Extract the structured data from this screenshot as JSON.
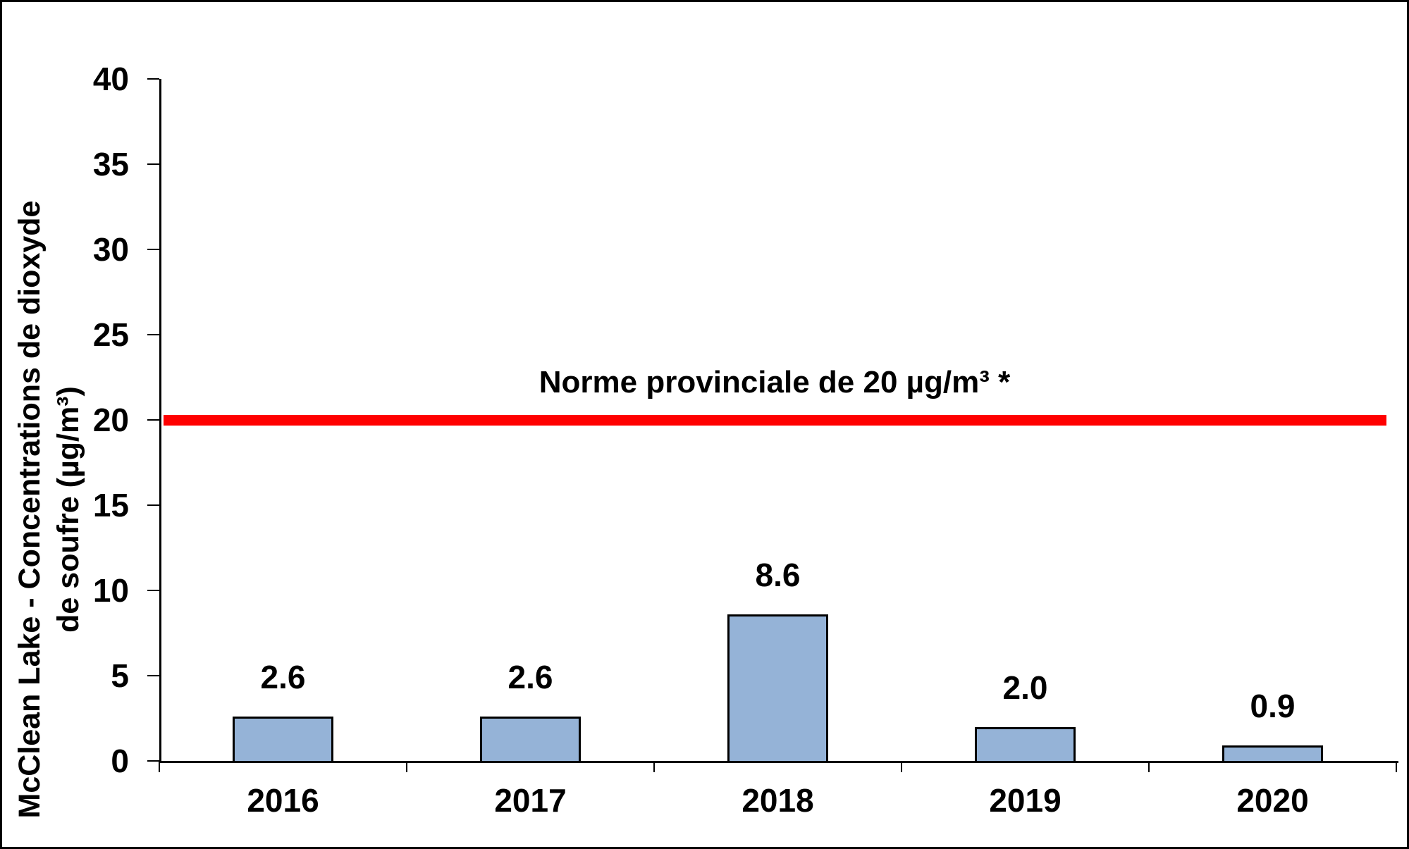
{
  "chart_data": {
    "type": "bar",
    "title": "",
    "categories": [
      "2016",
      "2017",
      "2018",
      "2019",
      "2020"
    ],
    "values": [
      2.6,
      2.6,
      8.6,
      2.0,
      0.9
    ],
    "value_labels": [
      "2.6",
      "2.6",
      "8.6",
      "2.0",
      "0.9"
    ],
    "ylabel_line1": "McClean Lake - Concentrations de dioxyde",
    "ylabel_line2": "de soufre (µg/m³)",
    "xlabel": "",
    "y_ticks": [
      40,
      35,
      30,
      25,
      20,
      15,
      10,
      5,
      0
    ],
    "ylim": [
      0,
      40
    ],
    "grid": false,
    "legend": false,
    "reference_line": {
      "value": 20,
      "label": "Norme provinciale de 20 µg/m³ *",
      "color": "#FF0000"
    },
    "colors": {
      "bar_fill": "#95B3D7",
      "bar_border": "#000000",
      "axis": "#000000",
      "text": "#000000",
      "background": "#FFFFFF"
    }
  }
}
